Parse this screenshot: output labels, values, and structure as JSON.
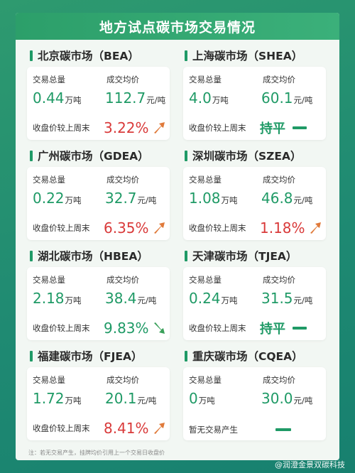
{
  "title": "地方试点碳市场交易情况",
  "labels": {
    "volume": "交易总量",
    "avg_price": "成交均价",
    "change": "收盘价较上周末",
    "no_trade": "暂无交易产生"
  },
  "markets": [
    {
      "name": "北京碳市场（BEA）",
      "volume": "0.44",
      "volume_unit": "万吨",
      "price": "112.7",
      "price_unit": "元/吨",
      "change": "3.22%",
      "trend": "up"
    },
    {
      "name": "上海碳市场（SHEA）",
      "volume": "4.0",
      "volume_unit": "万吨",
      "price": "60.1",
      "price_unit": "元/吨",
      "change": "持平",
      "trend": "flat"
    },
    {
      "name": "广州碳市场（GDEA）",
      "volume": "0.22",
      "volume_unit": "万吨",
      "price": "32.7",
      "price_unit": "元/吨",
      "change": "6.35%",
      "trend": "up"
    },
    {
      "name": "深圳碳市场（SZEA）",
      "volume": "1.08",
      "volume_unit": "万吨",
      "price": "46.8",
      "price_unit": "元/吨",
      "change": "1.18%",
      "trend": "up"
    },
    {
      "name": "湖北碳市场（HBEA）",
      "volume": "2.18",
      "volume_unit": "万吨",
      "price": "38.4",
      "price_unit": "元/吨",
      "change": "9.83%",
      "trend": "down"
    },
    {
      "name": "天津碳市场（TJEA）",
      "volume": "0.24",
      "volume_unit": "万吨",
      "price": "31.5",
      "price_unit": "元/吨",
      "change": "持平",
      "trend": "flat"
    },
    {
      "name": "福建碳市场（FJEA）",
      "volume": "1.72",
      "volume_unit": "万吨",
      "price": "20.1",
      "price_unit": "元/吨",
      "change": "8.41%",
      "trend": "up"
    },
    {
      "name": "重庆碳市场（CQEA）",
      "volume": "0",
      "volume_unit": "万吨",
      "price": "30.0",
      "price_unit": "元/吨",
      "change": "",
      "trend": "none"
    }
  ],
  "note": "注：若无交易产生，挂牌均价引用上一个交易日收盘价",
  "watermark": "@润澄金景双碳科技",
  "colors": {
    "up": "#d93a3a",
    "down": "#1f9a66",
    "accent": "#1f9a66"
  }
}
